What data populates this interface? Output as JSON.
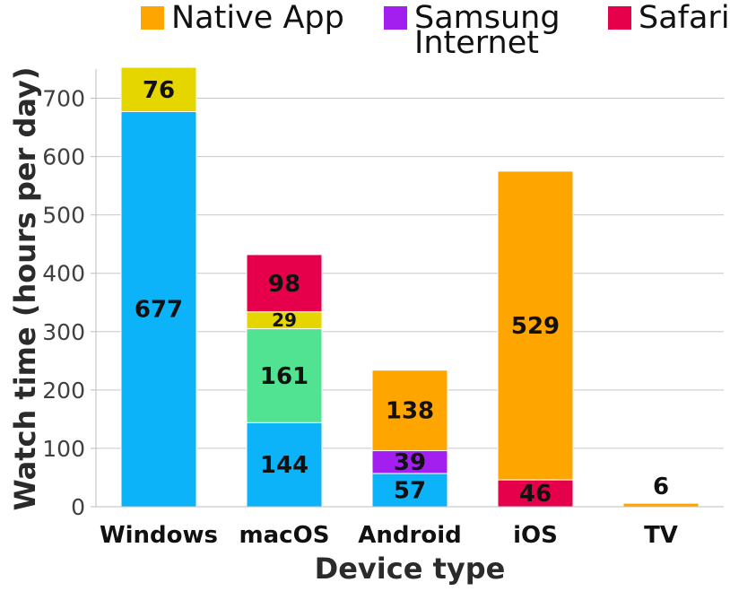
{
  "chart_data": {
    "type": "bar",
    "stacked": true,
    "title": "",
    "xlabel": "Device type",
    "ylabel": "Watch time (hours per day)",
    "ylim": [
      0,
      750
    ],
    "yticks": [
      "0",
      "100",
      "200",
      "300",
      "400",
      "500",
      "600",
      "700"
    ],
    "grid": "horizontal",
    "legend_position": "top",
    "categories": [
      "Windows",
      "macOS",
      "Android",
      "iOS",
      "TV"
    ],
    "series": [
      {
        "name": "",
        "color": "#0db3f9",
        "values": [
          677,
          144,
          57,
          null,
          null
        ],
        "labels": [
          "677",
          "144",
          "57",
          "",
          ""
        ]
      },
      {
        "name": "",
        "color": "#52e392",
        "values": [
          null,
          161,
          null,
          null,
          null
        ],
        "labels": [
          "",
          "161",
          "",
          "",
          ""
        ]
      },
      {
        "name": "Safari",
        "color": "#e6004c",
        "values": [
          null,
          null,
          null,
          46,
          null
        ],
        "labels": [
          "",
          "",
          "",
          "46",
          ""
        ]
      },
      {
        "name": "Samsung Internet",
        "color": "#a31ff0",
        "values": [
          null,
          null,
          39,
          null,
          null
        ],
        "labels": [
          "",
          "",
          "39",
          "",
          ""
        ]
      },
      {
        "name": "Native App",
        "color": "#ffa500",
        "values": [
          null,
          null,
          138,
          529,
          6
        ],
        "labels": [
          "",
          "",
          "138",
          "529",
          "6"
        ]
      },
      {
        "name": "",
        "color": "#e6d600",
        "values": [
          76,
          29,
          null,
          null,
          null
        ],
        "labels": [
          "76",
          "29",
          "",
          "",
          ""
        ]
      },
      {
        "name": "",
        "color": "#e6004c",
        "values": [
          null,
          98,
          null,
          null,
          null
        ],
        "labels": [
          "",
          "98",
          "",
          "",
          ""
        ]
      }
    ],
    "legend": [
      {
        "label": "Native App",
        "color": "#ffa500"
      },
      {
        "label": "Samsung Internet",
        "color": "#a31ff0"
      },
      {
        "label": "Safari",
        "color": "#e6004c"
      }
    ]
  }
}
